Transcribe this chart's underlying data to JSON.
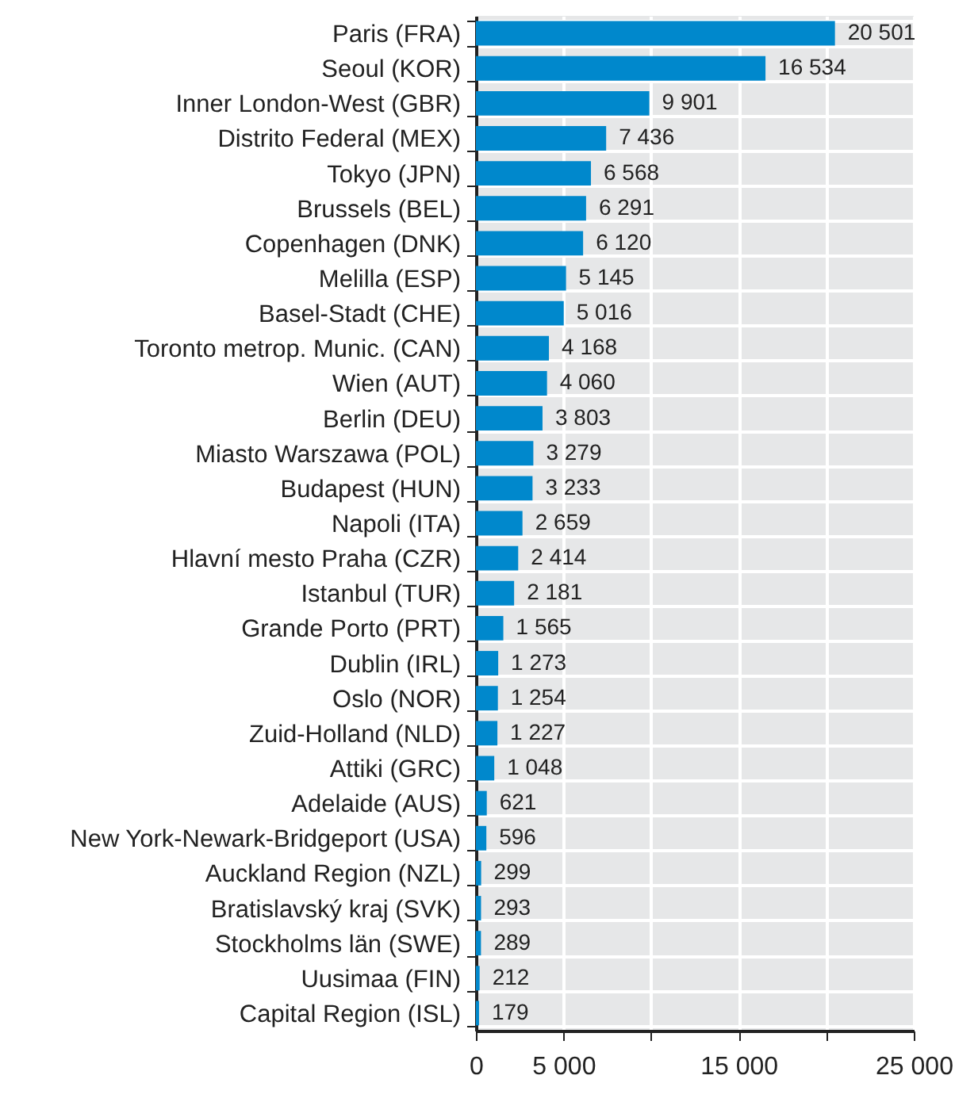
{
  "chart_data": {
    "type": "bar",
    "orientation": "horizontal",
    "categories": [
      "Paris (FRA)",
      "Seoul (KOR)",
      "Inner London-West (GBR)",
      "Distrito Federal (MEX)",
      "Tokyo (JPN)",
      "Brussels (BEL)",
      "Copenhagen (DNK)",
      "Melilla (ESP)",
      "Basel-Stadt (CHE)",
      "Toronto metrop. Munic. (CAN)",
      "Wien (AUT)",
      "Berlin (DEU)",
      "Miasto Warszawa (POL)",
      "Budapest (HUN)",
      "Napoli (ITA)",
      "Hlavní mesto Praha (CZR)",
      "Istanbul (TUR)",
      "Grande Porto (PRT)",
      "Dublin (IRL)",
      "Oslo (NOR)",
      "Zuid-Holland (NLD)",
      "Attiki (GRC)",
      "Adelaide (AUS)",
      "New York-Newark-Bridgeport (USA)",
      "Auckland Region (NZL)",
      "Bratislavský kraj (SVK)",
      "Stockholms län (SWE)",
      "Uusimaa (FIN)",
      "Capital Region (ISL)"
    ],
    "values": [
      20501,
      16534,
      9901,
      7436,
      6568,
      6291,
      6120,
      5145,
      5016,
      4168,
      4060,
      3803,
      3279,
      3233,
      2659,
      2414,
      2181,
      1565,
      1273,
      1254,
      1227,
      1048,
      621,
      596,
      299,
      293,
      289,
      212,
      179
    ],
    "value_labels": [
      "20 501",
      "16 534",
      "9 901",
      "7 436",
      "6 568",
      "6 291",
      "6 120",
      "5 145",
      "5 016",
      "4 168",
      "4 060",
      "3 803",
      "3 279",
      "3 233",
      "2 659",
      "2 414",
      "2 181",
      "1 565",
      "1 273",
      "1 254",
      "1 227",
      "1 048",
      "621",
      "596",
      "299",
      "293",
      "289",
      "212",
      "179"
    ],
    "color": "#0088cc",
    "xlim": [
      0,
      25000
    ],
    "xticks": [
      0,
      {
        "value": 5000,
        "label": "5 000"
      },
      {
        "value": 10000,
        "label": null
      },
      {
        "value": 15000,
        "label": "15 000"
      },
      {
        "value": 20000,
        "label": null
      },
      {
        "value": 25000,
        "label": "25 000"
      }
    ],
    "grid": true
  }
}
